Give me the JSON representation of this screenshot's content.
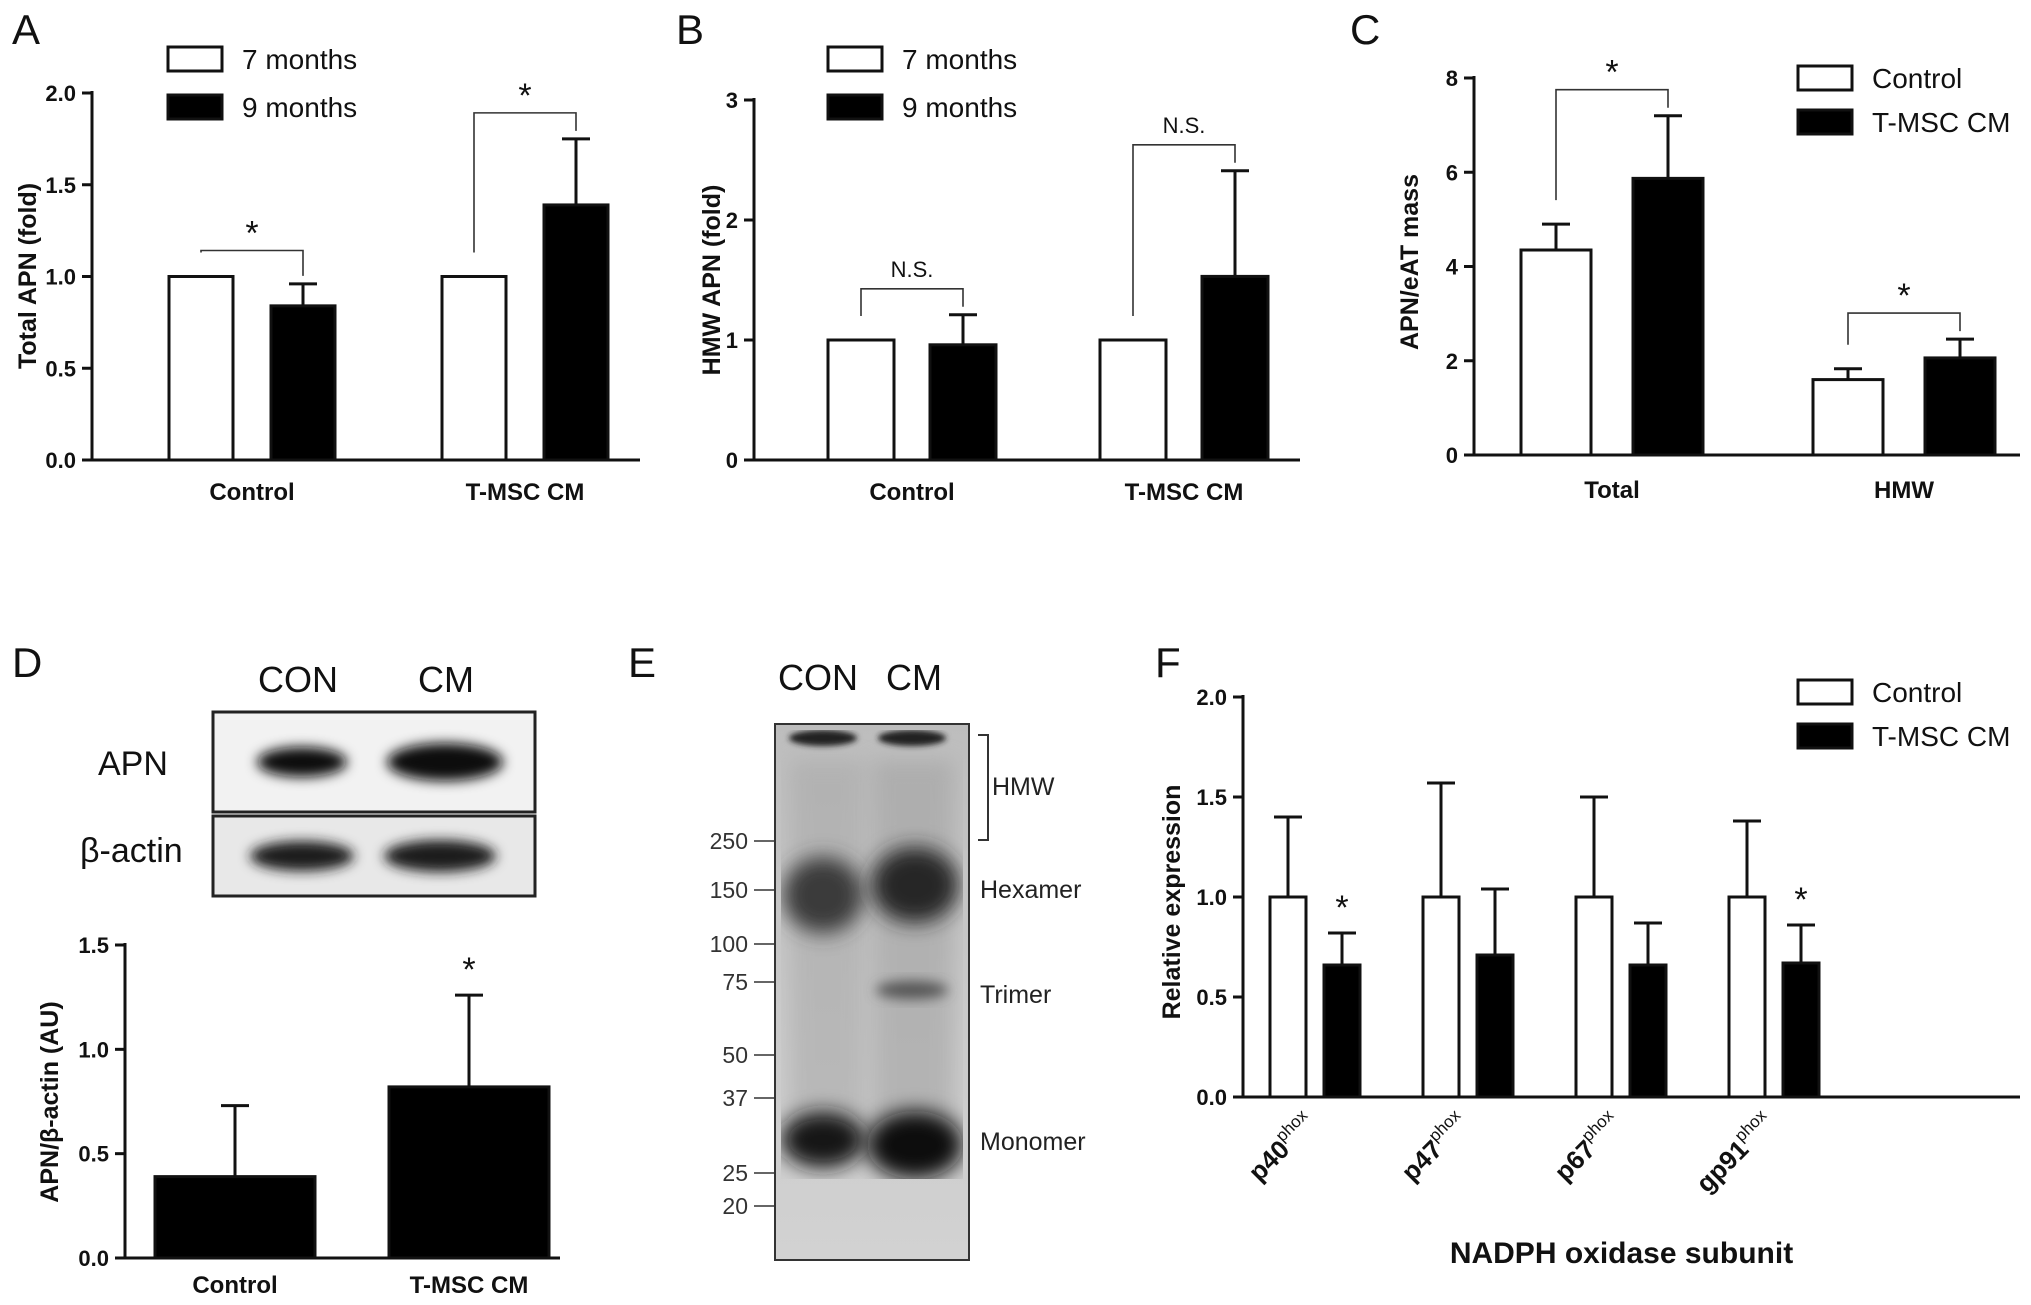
{
  "panel_labels": [
    "A",
    "B",
    "C",
    "D",
    "E",
    "F"
  ],
  "colors": {
    "open_bar": "#ffffff",
    "filled_bar": "#000000",
    "axis": "#111111"
  },
  "chart_data": [
    {
      "panel": "A",
      "type": "bar",
      "ylabel": "Total APN (fold)",
      "xlabel": "",
      "ylim": [
        0,
        2.0
      ],
      "yticks": [
        0,
        0.5,
        1.0,
        1.5,
        2.0
      ],
      "ytick_labels": [
        "0.0",
        "0.5",
        "1.0",
        "1.5",
        "2.0"
      ],
      "categories": [
        "Control",
        "T-MSC CM"
      ],
      "legend": {
        "placement": "top-left",
        "entries": [
          "7 months",
          "9 months"
        ]
      },
      "series": [
        {
          "name": "7 months",
          "style": "open",
          "values": [
            1.0,
            1.0
          ],
          "errors": [
            0,
            0
          ]
        },
        {
          "name": "9 months",
          "style": "filled",
          "values": [
            0.84,
            1.39
          ],
          "errors": [
            0.12,
            0.36
          ]
        }
      ],
      "annotations": [
        {
          "category": 0,
          "label": "*"
        },
        {
          "category": 1,
          "label": "*"
        }
      ]
    },
    {
      "panel": "B",
      "type": "bar",
      "ylabel": "HMW APN (fold)",
      "xlabel": "",
      "ylim": [
        0,
        3
      ],
      "yticks": [
        0,
        1,
        2,
        3
      ],
      "ytick_labels": [
        "0",
        "1",
        "2",
        "3"
      ],
      "categories": [
        "Control",
        "T-MSC CM"
      ],
      "legend": {
        "placement": "top-left",
        "entries": [
          "7 months",
          "9 months"
        ]
      },
      "series": [
        {
          "name": "7 months",
          "style": "open",
          "values": [
            1.0,
            1.0
          ],
          "errors": [
            0,
            0
          ]
        },
        {
          "name": "9 months",
          "style": "filled",
          "values": [
            0.96,
            1.53
          ],
          "errors": [
            0.25,
            0.88
          ]
        }
      ],
      "annotations": [
        {
          "category": 0,
          "label": "N.S."
        },
        {
          "category": 1,
          "label": "N.S."
        }
      ]
    },
    {
      "panel": "C",
      "type": "bar",
      "ylabel": "APN/eAT mass",
      "xlabel": "",
      "ylim": [
        0,
        8
      ],
      "yticks": [
        0,
        2,
        4,
        6,
        8
      ],
      "ytick_labels": [
        "0",
        "2",
        "4",
        "6",
        "8"
      ],
      "categories": [
        "Total",
        "HMW"
      ],
      "legend": {
        "placement": "top-right",
        "entries": [
          "Control",
          "T-MSC CM"
        ]
      },
      "series": [
        {
          "name": "Control",
          "style": "open",
          "values": [
            4.35,
            1.6
          ],
          "errors": [
            0.55,
            0.23
          ]
        },
        {
          "name": "T-MSC CM",
          "style": "filled",
          "values": [
            5.87,
            2.06
          ],
          "errors": [
            1.33,
            0.4
          ]
        }
      ],
      "annotations": [
        {
          "category": 0,
          "label": "*"
        },
        {
          "category": 1,
          "label": "*"
        }
      ]
    },
    {
      "panel": "D",
      "type": "bar",
      "ylabel": "APN/β-actin (AU)",
      "xlabel": "",
      "ylim": [
        0,
        1.5
      ],
      "yticks": [
        0,
        0.5,
        1.0,
        1.5
      ],
      "ytick_labels": [
        "0.0",
        "0.5",
        "1.0",
        "1.5"
      ],
      "categories": [
        "Control",
        "T-MSC CM"
      ],
      "series": [
        {
          "name": "",
          "style": "filled",
          "values": [
            0.39,
            0.82
          ],
          "errors": [
            0.34,
            0.44
          ]
        }
      ],
      "annotations": [
        {
          "category": 1,
          "label": "*"
        }
      ]
    },
    {
      "panel": "F",
      "type": "bar",
      "ylabel": "Relative expression",
      "xlabel": "NADPH oxidase subunit",
      "ylim": [
        0,
        2.0
      ],
      "yticks": [
        0,
        0.5,
        1.0,
        1.5,
        2.0
      ],
      "ytick_labels": [
        "0.0",
        "0.5",
        "1.0",
        "1.5",
        "2.0"
      ],
      "categories": [
        "p40",
        "p47",
        "p67",
        "gp91"
      ],
      "category_superscript": "phox",
      "legend": {
        "placement": "top-right",
        "entries": [
          "Control",
          "T-MSC CM"
        ]
      },
      "series": [
        {
          "name": "Control",
          "style": "open",
          "values": [
            1.0,
            1.0,
            1.0,
            1.0
          ],
          "errors": [
            0.4,
            0.57,
            0.5,
            0.38
          ]
        },
        {
          "name": "T-MSC CM",
          "style": "filled",
          "values": [
            0.66,
            0.71,
            0.66,
            0.67
          ],
          "errors": [
            0.16,
            0.33,
            0.21,
            0.19
          ]
        }
      ],
      "annotations": [
        {
          "category": 0,
          "label": "*"
        },
        {
          "category": 3,
          "label": "*"
        }
      ]
    }
  ],
  "blot_d": {
    "lanes": [
      "CON",
      "CM"
    ],
    "rows": [
      "APN",
      "β-actin"
    ]
  },
  "gel_e": {
    "lanes": [
      "CON",
      "CM"
    ],
    "markers": [
      "250",
      "150",
      "100",
      "75",
      "50",
      "37",
      "25",
      "20"
    ],
    "bands": [
      "HMW",
      "Hexamer",
      "Trimer",
      "Monomer"
    ]
  }
}
